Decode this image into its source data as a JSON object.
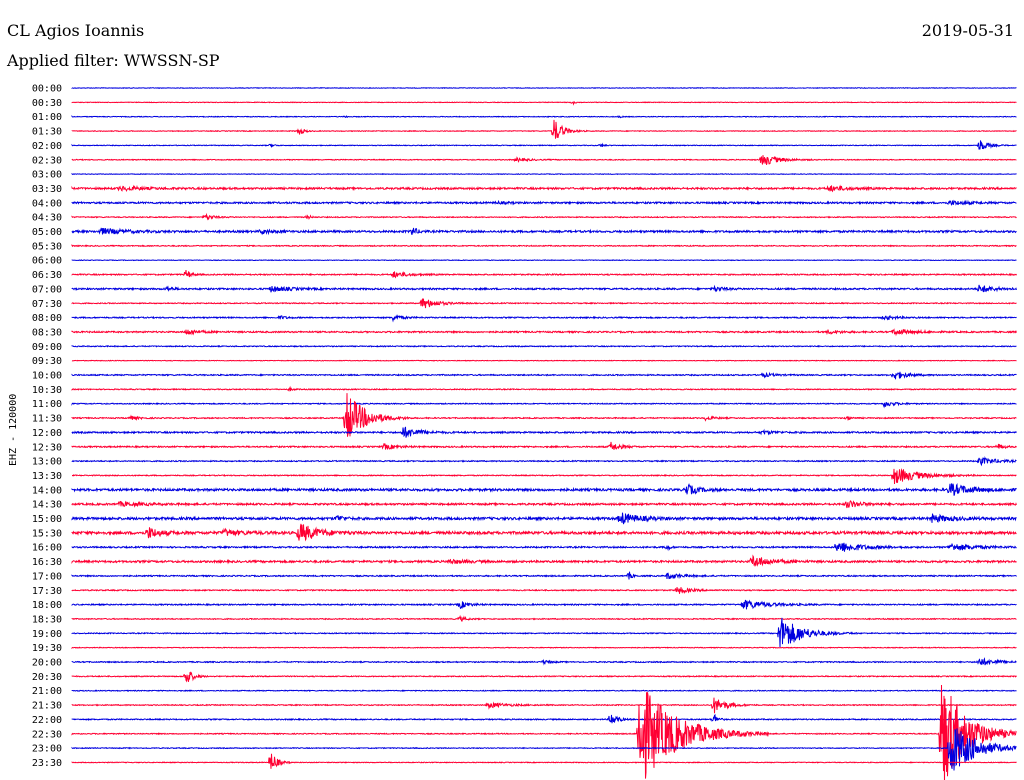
{
  "header": {
    "station": "CL Agios Ioannis",
    "date": "2019-05-31",
    "filter": "Applied filter: WWSSN-SP"
  },
  "colors": {
    "odd": "#0000e0",
    "even": "#ff0033"
  },
  "chart_data": {
    "type": "line",
    "title": "CL Agios Ioannis",
    "subtitle": "Applied filter: WWSSN-SP",
    "ylabel": "EHZ - 120000",
    "xlabel": "",
    "grid": false,
    "tick_labels": [
      "00:00",
      "00:30",
      "01:00",
      "01:30",
      "02:00",
      "02:30",
      "03:00",
      "03:30",
      "04:00",
      "04:30",
      "05:00",
      "05:30",
      "06:00",
      "06:30",
      "07:00",
      "07:30",
      "08:00",
      "08:30",
      "09:00",
      "09:30",
      "10:00",
      "10:30",
      "11:00",
      "11:30",
      "12:00",
      "12:30",
      "13:00",
      "13:30",
      "14:00",
      "14:30",
      "15:00",
      "15:30",
      "16:00",
      "16:30",
      "17:00",
      "17:30",
      "18:00",
      "18:30",
      "19:00",
      "19:30",
      "20:00",
      "20:30",
      "21:00",
      "21:30",
      "22:00",
      "22:30",
      "23:00",
      "23:30"
    ],
    "series": [
      {
        "noise": 0.5,
        "events": []
      },
      {
        "noise": 0.5,
        "events": [
          [
            0.53,
            2,
            4
          ]
        ]
      },
      {
        "noise": 0.6,
        "events": [
          [
            0.29,
            1,
            3
          ],
          [
            0.58,
            1,
            3
          ]
        ]
      },
      {
        "noise": 0.6,
        "events": [
          [
            0.24,
            4,
            8
          ],
          [
            0.51,
            13,
            15
          ]
        ]
      },
      {
        "noise": 0.6,
        "events": [
          [
            0.21,
            2,
            6
          ],
          [
            0.56,
            2,
            5
          ],
          [
            0.96,
            7,
            14
          ]
        ]
      },
      {
        "noise": 0.7,
        "events": [
          [
            0.47,
            2,
            20
          ],
          [
            0.73,
            7,
            25
          ]
        ]
      },
      {
        "noise": 0.5,
        "events": []
      },
      {
        "noise": 1.5,
        "events": [
          [
            0.05,
            2,
            40
          ],
          [
            0.8,
            3,
            30
          ]
        ]
      },
      {
        "noise": 1.4,
        "events": [
          [
            0.45,
            1,
            20
          ],
          [
            0.93,
            2,
            30
          ]
        ]
      },
      {
        "noise": 0.8,
        "events": [
          [
            0.14,
            3,
            15
          ],
          [
            0.25,
            2,
            5
          ]
        ]
      },
      {
        "noise": 1.6,
        "events": [
          [
            0.03,
            3,
            40
          ],
          [
            0.36,
            5,
            8
          ],
          [
            0.2,
            2,
            20
          ]
        ]
      },
      {
        "noise": 0.8,
        "events": []
      },
      {
        "noise": 0.5,
        "events": []
      },
      {
        "noise": 1.0,
        "events": [
          [
            0.12,
            5,
            8
          ],
          [
            0.34,
            3,
            25
          ]
        ]
      },
      {
        "noise": 1.3,
        "events": [
          [
            0.21,
            3,
            30
          ],
          [
            0.1,
            2,
            10
          ],
          [
            0.68,
            2,
            20
          ],
          [
            0.96,
            4,
            25
          ]
        ]
      },
      {
        "noise": 0.8,
        "events": [
          [
            0.37,
            6,
            25
          ]
        ]
      },
      {
        "noise": 1.0,
        "events": [
          [
            0.34,
            3,
            15
          ],
          [
            0.22,
            2,
            10
          ],
          [
            0.86,
            2,
            20
          ]
        ]
      },
      {
        "noise": 1.2,
        "events": [
          [
            0.12,
            3,
            20
          ],
          [
            0.8,
            2,
            20
          ],
          [
            0.87,
            3,
            30
          ]
        ]
      },
      {
        "noise": 0.8,
        "events": []
      },
      {
        "noise": 0.5,
        "events": []
      },
      {
        "noise": 1.0,
        "events": [
          [
            0.87,
            5,
            20
          ],
          [
            0.73,
            2,
            20
          ]
        ]
      },
      {
        "noise": 0.8,
        "events": [
          [
            0.23,
            2,
            6
          ]
        ]
      },
      {
        "noise": 0.8,
        "events": [
          [
            0.86,
            3,
            18
          ]
        ]
      },
      {
        "noise": 0.9,
        "events": [
          [
            0.29,
            28,
            30
          ],
          [
            0.06,
            2,
            15
          ],
          [
            0.67,
            2,
            15
          ],
          [
            0.82,
            2,
            8
          ]
        ]
      },
      {
        "noise": 1.3,
        "events": [
          [
            0.35,
            6,
            25
          ],
          [
            0.73,
            2,
            20
          ]
        ]
      },
      {
        "noise": 1.1,
        "events": [
          [
            0.33,
            3,
            20
          ],
          [
            0.57,
            5,
            15
          ],
          [
            0.98,
            3,
            10
          ]
        ]
      },
      {
        "noise": 0.9,
        "events": [
          [
            0.96,
            4,
            30
          ]
        ]
      },
      {
        "noise": 0.8,
        "events": [
          [
            0.87,
            9,
            40
          ]
        ]
      },
      {
        "noise": 1.9,
        "events": [
          [
            0.65,
            6,
            18
          ],
          [
            0.93,
            6,
            35
          ]
        ]
      },
      {
        "noise": 1.5,
        "events": [
          [
            0.82,
            4,
            25
          ],
          [
            0.05,
            2,
            40
          ]
        ]
      },
      {
        "noise": 2.0,
        "events": [
          [
            0.28,
            4,
            10
          ],
          [
            0.58,
            6,
            30
          ],
          [
            0.91,
            4,
            30
          ]
        ]
      },
      {
        "noise": 2.2,
        "events": [
          [
            0.08,
            6,
            20
          ],
          [
            0.24,
            10,
            30
          ],
          [
            0.16,
            3,
            30
          ]
        ]
      },
      {
        "noise": 1.2,
        "events": [
          [
            0.81,
            6,
            40
          ],
          [
            0.93,
            4,
            40
          ],
          [
            0.63,
            4,
            4
          ]
        ]
      },
      {
        "noise": 1.6,
        "events": [
          [
            0.72,
            6,
            30
          ],
          [
            0.4,
            2,
            30
          ]
        ]
      },
      {
        "noise": 1.0,
        "events": [
          [
            0.59,
            4,
            5
          ],
          [
            0.63,
            3,
            25
          ]
        ]
      },
      {
        "noise": 0.9,
        "events": [
          [
            0.64,
            4,
            20
          ]
        ]
      },
      {
        "noise": 1.0,
        "events": [
          [
            0.41,
            4,
            15
          ],
          [
            0.71,
            5,
            40
          ]
        ]
      },
      {
        "noise": 0.8,
        "events": [
          [
            0.41,
            3,
            10
          ]
        ]
      },
      {
        "noise": 0.8,
        "events": [
          [
            0.75,
            18,
            35
          ]
        ]
      },
      {
        "noise": 0.6,
        "events": []
      },
      {
        "noise": 0.9,
        "events": [
          [
            0.96,
            4,
            30
          ],
          [
            0.5,
            2,
            10
          ]
        ]
      },
      {
        "noise": 0.8,
        "events": [
          [
            0.12,
            11,
            10
          ]
        ]
      },
      {
        "noise": 0.7,
        "events": []
      },
      {
        "noise": 0.8,
        "events": [
          [
            0.44,
            3,
            30
          ],
          [
            0.68,
            8,
            20
          ]
        ]
      },
      {
        "noise": 0.9,
        "events": [
          [
            0.57,
            8,
            10
          ],
          [
            0.68,
            6,
            6
          ]
        ]
      },
      {
        "noise": 0.8,
        "events": [
          [
            0.6,
            55,
            60
          ],
          [
            0.92,
            62,
            40
          ]
        ]
      },
      {
        "noise": 0.7,
        "events": [
          [
            0.93,
            30,
            40
          ]
        ]
      },
      {
        "noise": 0.6,
        "events": [
          [
            0.21,
            12,
            10
          ]
        ]
      }
    ]
  }
}
